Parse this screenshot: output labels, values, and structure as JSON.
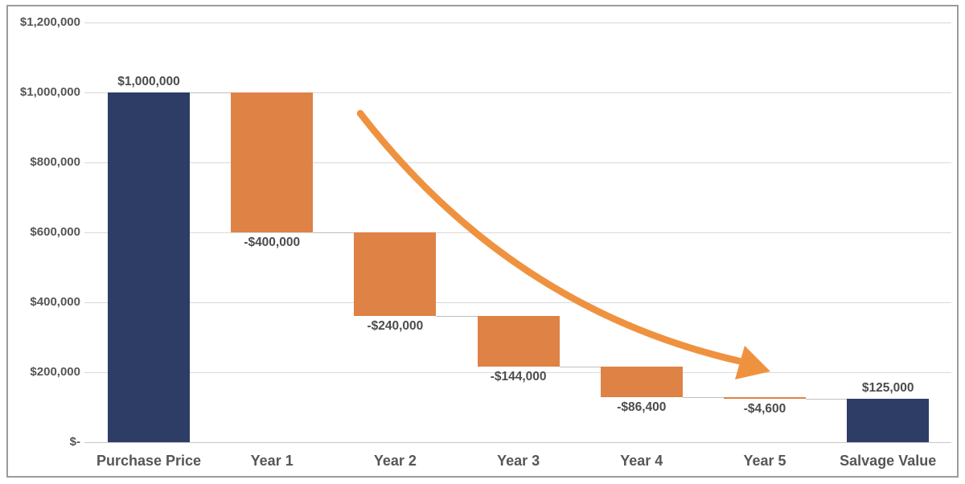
{
  "chart_data": {
    "type": "bar",
    "subtype": "waterfall",
    "title": "",
    "xlabel": "",
    "ylabel": "",
    "categories": [
      "Purchase Price",
      "Year 1",
      "Year 2",
      "Year 3",
      "Year 4",
      "Year 5",
      "Salvage Value"
    ],
    "values": [
      1000000,
      -400000,
      -240000,
      -144000,
      -86400,
      -4600,
      125000
    ],
    "bar_roles": [
      "total",
      "delta",
      "delta",
      "delta",
      "delta",
      "delta",
      "total"
    ],
    "bar_labels": [
      "$1,000,000",
      "-$400,000",
      "-$240,000",
      "-$144,000",
      "-$86,400",
      "-$4,600",
      "$125,000"
    ],
    "y_ticks": [
      {
        "value": 0,
        "label": "$-"
      },
      {
        "value": 200000,
        "label": "$200,000"
      },
      {
        "value": 400000,
        "label": "$400,000"
      },
      {
        "value": 600000,
        "label": "$600,000"
      },
      {
        "value": 800000,
        "label": "$800,000"
      },
      {
        "value": 1000000,
        "label": "$1,000,000"
      },
      {
        "value": 1200000,
        "label": "$1,200,000"
      }
    ],
    "ylim": [
      0,
      1200000
    ],
    "grid": true,
    "legend": false,
    "annotations": [
      {
        "type": "curved-arrow",
        "meaning": "declining depreciation trend from Year 1 toward Year 5"
      }
    ],
    "colors": {
      "total_bar": "#2e3d66",
      "delta_bar": "#de8245",
      "arrow": "#ef9240",
      "gridline": "#d9d9d9",
      "connector": "#bfbfbf",
      "value_label_text": "#4c4c4c",
      "axis_text": "#565656",
      "frame_border": "#9b9b9b",
      "background": "#ffffff"
    }
  }
}
